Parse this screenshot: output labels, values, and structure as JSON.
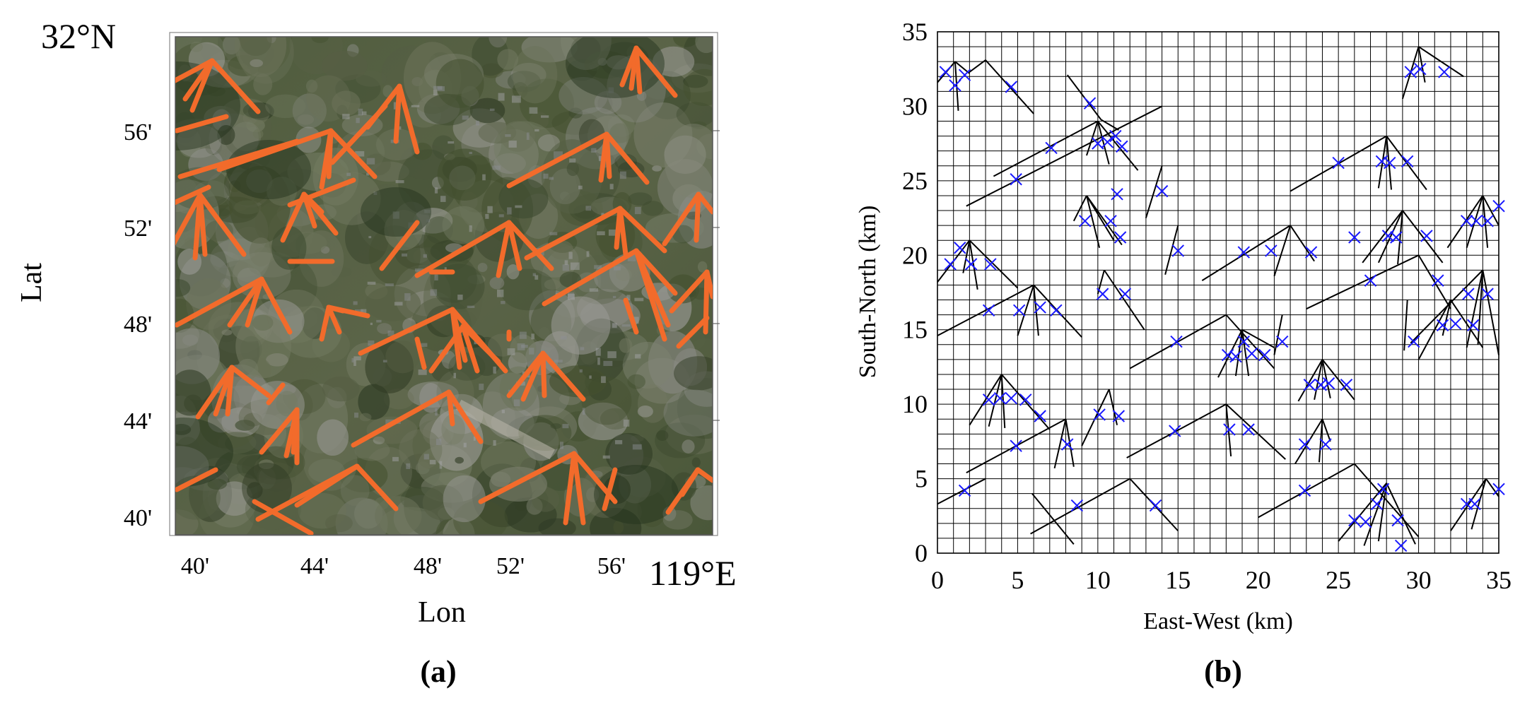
{
  "panel_a": {
    "caption": "(a)",
    "top_lat_label": "32°N",
    "right_lon_label": "119°E",
    "xlabel": "Lon",
    "ylabel": "Lat",
    "lat_ticks": [
      "56'",
      "52'",
      "48'",
      "44'",
      "40'"
    ],
    "lon_ticks": [
      "40'",
      "44'",
      "48'",
      "52'",
      "56'"
    ],
    "track_color": "#f26b2b",
    "lat_values_min": [
      56,
      52,
      48,
      44,
      40
    ],
    "lon_values_min": [
      40,
      44,
      48,
      52,
      56
    ]
  },
  "panel_b": {
    "caption": "(b)",
    "xlabel": "East-West (km)",
    "ylabel": "South-North (km)",
    "xticks": [
      "0",
      "5",
      "10",
      "15",
      "20",
      "25",
      "30",
      "35"
    ],
    "yticks": [
      "0",
      "5",
      "10",
      "15",
      "20",
      "25",
      "30",
      "35"
    ],
    "range_km": [
      0,
      35
    ],
    "grid_step_km": 1,
    "track_color": "#000000",
    "marker_color": "#1a1aff",
    "markers": [
      [
        0.5,
        32.3
      ],
      [
        1.1,
        31.4
      ],
      [
        1.7,
        32.1
      ],
      [
        4.6,
        31.3
      ],
      [
        9.5,
        30.2
      ],
      [
        7.1,
        27.2
      ],
      [
        10,
        27.5
      ],
      [
        10.6,
        27.6
      ],
      [
        11.1,
        28
      ],
      [
        11.5,
        27.3
      ],
      [
        4.9,
        25.1
      ],
      [
        11.2,
        24.1
      ],
      [
        14,
        24.3
      ],
      [
        9.2,
        22.3
      ],
      [
        10.8,
        22.3
      ],
      [
        11.4,
        21.2
      ],
      [
        1.4,
        20.5
      ],
      [
        0.8,
        19.4
      ],
      [
        2.1,
        19.4
      ],
      [
        3.3,
        19.4
      ],
      [
        15,
        20.3
      ],
      [
        19.1,
        20.2
      ],
      [
        20.8,
        20.3
      ],
      [
        23.3,
        20.2
      ],
      [
        26,
        21.2
      ],
      [
        28.1,
        21.3
      ],
      [
        28.6,
        21.2
      ],
      [
        30.5,
        21.3
      ],
      [
        3.2,
        16.3
      ],
      [
        5.1,
        16.3
      ],
      [
        6.4,
        16.5
      ],
      [
        7.4,
        16.3
      ],
      [
        10.3,
        17.4
      ],
      [
        11.7,
        17.4
      ],
      [
        14.9,
        14.2
      ],
      [
        18.1,
        13.3
      ],
      [
        18.6,
        13.2
      ],
      [
        19.1,
        14.2
      ],
      [
        19.6,
        13.4
      ],
      [
        20.4,
        13.3
      ],
      [
        21.5,
        14.2
      ],
      [
        3.2,
        10.3
      ],
      [
        3.9,
        10.4
      ],
      [
        4.6,
        10.4
      ],
      [
        5.5,
        10.3
      ],
      [
        6.4,
        9.2
      ],
      [
        10.1,
        9.3
      ],
      [
        11.3,
        9.2
      ],
      [
        4.9,
        7.2
      ],
      [
        8.1,
        7.3
      ],
      [
        14.8,
        8.2
      ],
      [
        18.2,
        8.3
      ],
      [
        19.4,
        8.3
      ],
      [
        22.9,
        7.3
      ],
      [
        24.2,
        7.3
      ],
      [
        23.2,
        11.3
      ],
      [
        23.9,
        11.3
      ],
      [
        24.4,
        11.4
      ],
      [
        25.5,
        11.3
      ],
      [
        27,
        18.3
      ],
      [
        31.2,
        18.3
      ],
      [
        31.5,
        15.3
      ],
      [
        32.3,
        15.4
      ],
      [
        33.4,
        15.3
      ],
      [
        33.1,
        17.4
      ],
      [
        34.3,
        17.4
      ],
      [
        33,
        22.3
      ],
      [
        33.6,
        22.3
      ],
      [
        34.3,
        22.3
      ],
      [
        35,
        23.3
      ],
      [
        29.7,
        14.2
      ],
      [
        25,
        26.2
      ],
      [
        27.7,
        26.3
      ],
      [
        28.2,
        26.2
      ],
      [
        29.3,
        26.3
      ],
      [
        29.5,
        32.3
      ],
      [
        30.1,
        32.5
      ],
      [
        31.6,
        32.3
      ],
      [
        1.7,
        4.2
      ],
      [
        8.7,
        3.2
      ],
      [
        13.6,
        3.2
      ],
      [
        22.9,
        4.2
      ],
      [
        26,
        2.2
      ],
      [
        26.7,
        2.1
      ],
      [
        27.4,
        3.3
      ],
      [
        27.8,
        4.3
      ],
      [
        28.7,
        2.2
      ],
      [
        28.9,
        0.5
      ],
      [
        33,
        3.3
      ],
      [
        33.5,
        3.3
      ],
      [
        35,
        4.3
      ]
    ]
  }
}
